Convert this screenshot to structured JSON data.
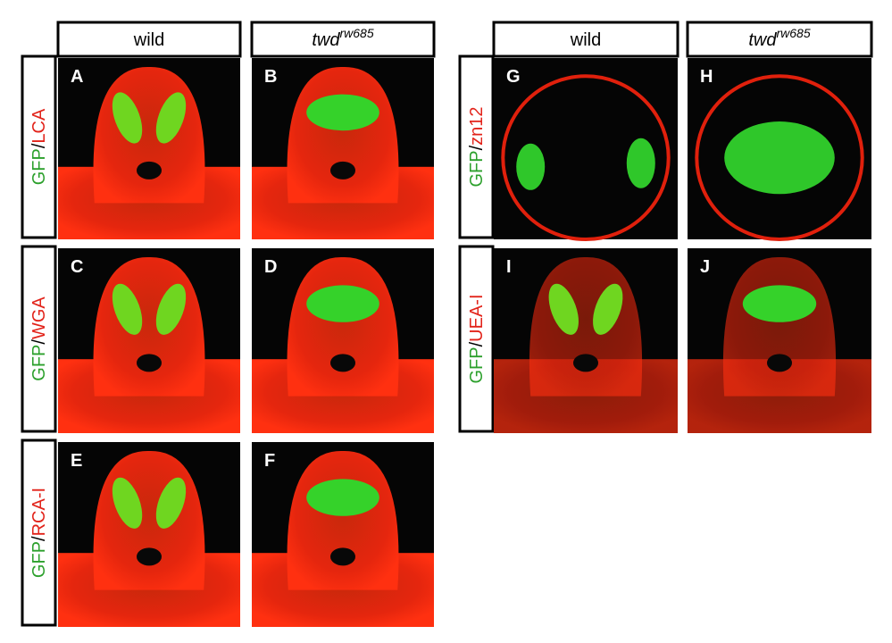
{
  "left_group": {
    "column_headers": [
      {
        "text": "wild"
      },
      {
        "text": "twd",
        "superscript": "rw685"
      }
    ],
    "rows": [
      {
        "label": {
          "marker": "GFP",
          "separator": "/",
          "stain": "LCA"
        },
        "panels": [
          "A",
          "B"
        ]
      },
      {
        "label": {
          "marker": "GFP",
          "separator": "/",
          "stain": "WGA"
        },
        "panels": [
          "C",
          "D"
        ]
      },
      {
        "label": {
          "marker": "GFP",
          "separator": "/",
          "stain": "RCA-I"
        },
        "panels": [
          "E",
          "F"
        ]
      }
    ]
  },
  "right_group": {
    "column_headers": [
      {
        "text": "wild"
      },
      {
        "text": "twd",
        "superscript": "rw685"
      }
    ],
    "rows": [
      {
        "label": {
          "marker": "GFP",
          "separator": "/",
          "stain": "zn12"
        },
        "panels": [
          "G",
          "H"
        ]
      },
      {
        "label": {
          "marker": "GFP",
          "separator": "/",
          "stain": "UEA-I"
        },
        "panels": [
          "I",
          "J"
        ]
      }
    ]
  }
}
